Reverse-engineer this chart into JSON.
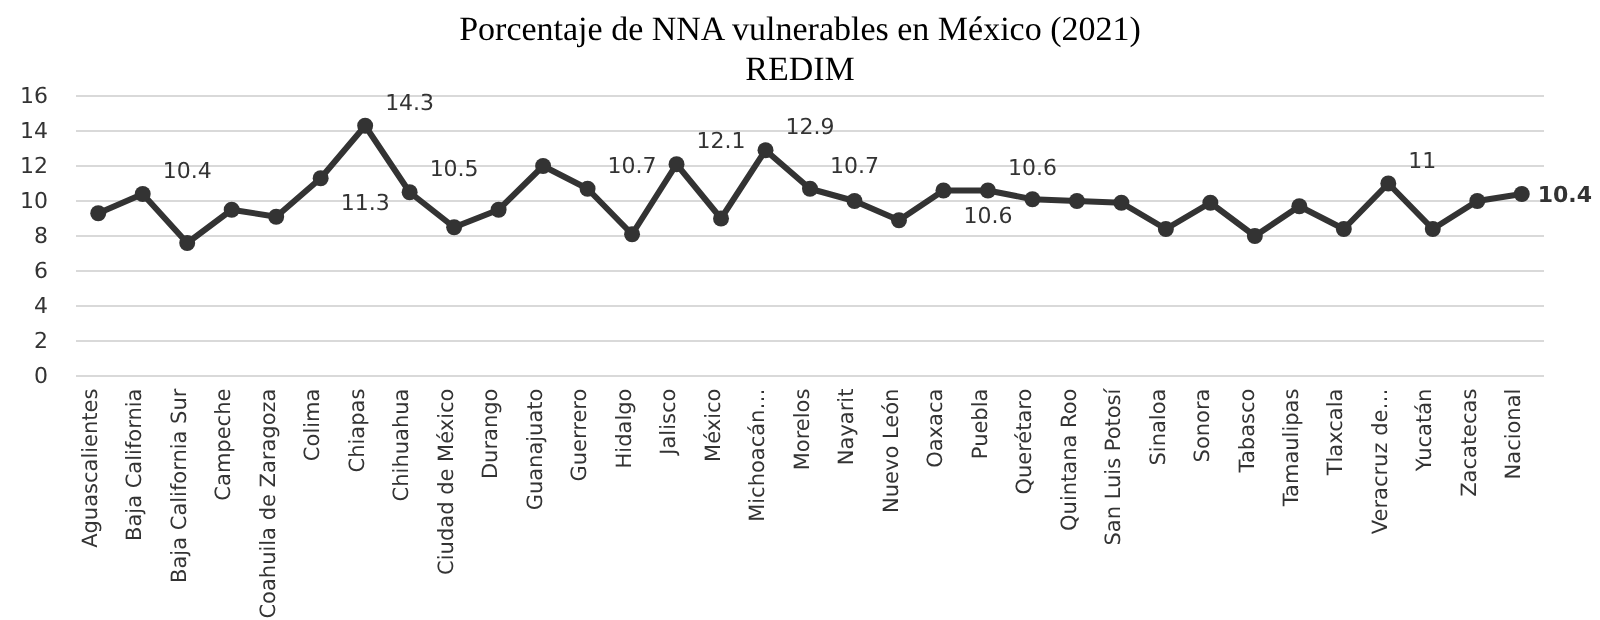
{
  "chart_data": {
    "type": "line",
    "title": "Porcentaje de NNA vulnerables en México (2021)",
    "subtitle": "REDIM",
    "categories": [
      "Aguascalientes",
      "Baja California",
      "Baja California Sur",
      "Campeche",
      "Coahuila de Zaragoza",
      "Colima",
      "Chiapas",
      "Chihuahua",
      "Ciudad de México",
      "Durango",
      "Guanajuato",
      "Guerrero",
      "Hidalgo",
      "Jalisco",
      "México",
      "Michoacán…",
      "Morelos",
      "Nayarit",
      "Nuevo León",
      "Oaxaca",
      "Puebla",
      "Querétaro",
      "Quintana Roo",
      "San Luis Potosí",
      "Sinaloa",
      "Sonora",
      "Tabasco",
      "Tamaulipas",
      "Tlaxcala",
      "Veracruz de…",
      "Yucatán",
      "Zacatecas",
      "Nacional"
    ],
    "series": [
      {
        "color": "#333333",
        "values": [
          9.3,
          10.4,
          7.6,
          9.5,
          9.1,
          11.3,
          14.3,
          10.5,
          8.5,
          9.5,
          12.0,
          10.7,
          8.1,
          12.1,
          9.0,
          12.9,
          10.7,
          10.0,
          8.9,
          10.6,
          10.6,
          10.1,
          10.0,
          9.9,
          8.4,
          9.9,
          8.0,
          9.7,
          8.4,
          11,
          8.4,
          10.0,
          10.4
        ],
        "value_labels": [
          null,
          "10.4",
          null,
          null,
          null,
          "11.3",
          "14.3",
          "10.5",
          null,
          null,
          null,
          "10.7",
          null,
          "12.1",
          null,
          "12.9",
          "10.7",
          null,
          null,
          "10.6",
          "10.6",
          null,
          null,
          null,
          null,
          null,
          null,
          null,
          null,
          "11",
          null,
          null,
          "10.4"
        ]
      }
    ],
    "ylim": [
      0,
      16
    ],
    "yticks": [
      0,
      2,
      4,
      6,
      8,
      10,
      12,
      14,
      16
    ],
    "grid": "y",
    "marker": "circle",
    "line_style": "solid"
  }
}
